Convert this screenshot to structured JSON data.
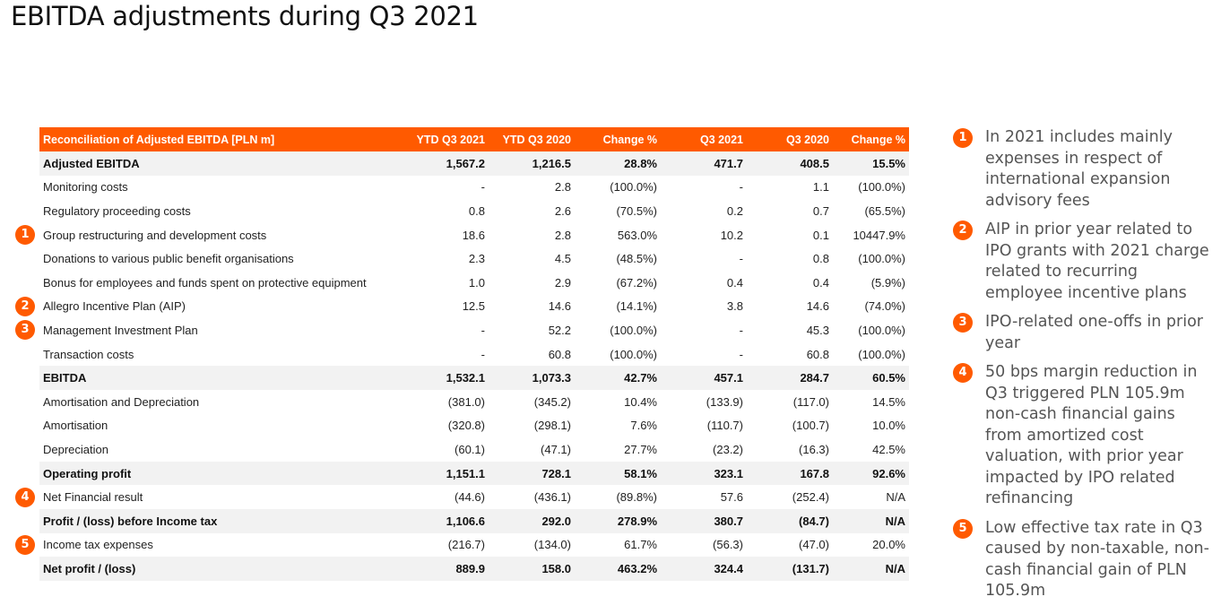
{
  "title": "EBITDA adjustments during Q3 2021",
  "table": {
    "headers": [
      "Reconciliation of Adjusted EBITDA [PLN m]",
      "YTD Q3 2021",
      "YTD Q3 2020",
      "Change %",
      "Q3 2021",
      "Q3 2020",
      "Change %"
    ],
    "rows": [
      {
        "label": "Adjusted EBITDA",
        "cells": [
          "1,567.2",
          "1,216.5",
          "28.8%",
          "471.7",
          "408.5",
          "15.5%"
        ],
        "bold": true
      },
      {
        "label": "Monitoring costs",
        "cells": [
          "-",
          "2.8",
          "(100.0%)",
          "-",
          "1.1",
          "(100.0%)"
        ]
      },
      {
        "label": "Regulatory proceeding costs",
        "cells": [
          "0.8",
          "2.6",
          "(70.5%)",
          "0.2",
          "0.7",
          "(65.5%)"
        ]
      },
      {
        "label": "Group restructuring and development costs",
        "cells": [
          "18.6",
          "2.8",
          "563.0%",
          "10.2",
          "0.1",
          "10447.9%"
        ],
        "badge": "1"
      },
      {
        "label": "Donations to various public benefit organisations",
        "cells": [
          "2.3",
          "4.5",
          "(48.5%)",
          "-",
          "0.8",
          "(100.0%)"
        ]
      },
      {
        "label": "Bonus for employees and funds spent on protective equipment",
        "cells": [
          "1.0",
          "2.9",
          "(67.2%)",
          "0.4",
          "0.4",
          "(5.9%)"
        ]
      },
      {
        "label": "Allegro Incentive Plan (AIP)",
        "cells": [
          "12.5",
          "14.6",
          "(14.1%)",
          "3.8",
          "14.6",
          "(74.0%)"
        ],
        "badge": "2"
      },
      {
        "label": "Management Investment Plan",
        "cells": [
          "-",
          "52.2",
          "(100.0%)",
          "-",
          "45.3",
          "(100.0%)"
        ],
        "badge": "3"
      },
      {
        "label": "Transaction costs",
        "cells": [
          "-",
          "60.8",
          "(100.0%)",
          "-",
          "60.8",
          "(100.0%)"
        ]
      },
      {
        "label": "EBITDA",
        "cells": [
          "1,532.1",
          "1,073.3",
          "42.7%",
          "457.1",
          "284.7",
          "60.5%"
        ],
        "bold": true
      },
      {
        "label": "Amortisation and Depreciation",
        "cells": [
          "(381.0)",
          "(345.2)",
          "10.4%",
          "(133.9)",
          "(117.0)",
          "14.5%"
        ]
      },
      {
        "label": "Amortisation",
        "cells": [
          "(320.8)",
          "(298.1)",
          "7.6%",
          "(110.7)",
          "(100.7)",
          "10.0%"
        ]
      },
      {
        "label": "Depreciation",
        "cells": [
          "(60.1)",
          "(47.1)",
          "27.7%",
          "(23.2)",
          "(16.3)",
          "42.5%"
        ]
      },
      {
        "label": "Operating profit",
        "cells": [
          "1,151.1",
          "728.1",
          "58.1%",
          "323.1",
          "167.8",
          "92.6%"
        ],
        "bold": true
      },
      {
        "label": "Net Financial result",
        "cells": [
          "(44.6)",
          "(436.1)",
          "(89.8%)",
          "57.6",
          "(252.4)",
          "N/A"
        ],
        "badge": "4"
      },
      {
        "label": "Profit / (loss) before Income tax",
        "cells": [
          "1,106.6",
          "292.0",
          "278.9%",
          "380.7",
          "(84.7)",
          "N/A"
        ],
        "bold": true
      },
      {
        "label": "Income tax expenses",
        "cells": [
          "(216.7)",
          "(134.0)",
          "61.7%",
          "(56.3)",
          "(47.0)",
          "20.0%"
        ],
        "badge": "5"
      },
      {
        "label": "Net profit / (loss)",
        "cells": [
          "889.9",
          "158.0",
          "463.2%",
          "324.4",
          "(131.7)",
          "N/A"
        ],
        "bold": true
      }
    ]
  },
  "notes": [
    {
      "num": "1",
      "text": "In 2021 includes mainly expenses in respect of international expansion advisory fees"
    },
    {
      "num": "2",
      "text": "AIP in prior year related to IPO grants with 2021 charge related to recurring employee incentive plans"
    },
    {
      "num": "3",
      "text": "IPO-related one-offs in prior year"
    },
    {
      "num": "4",
      "text": "50 bps margin reduction in Q3 triggered PLN 105.9m non-cash financial gains from amortized cost valuation, with prior year impacted by IPO related refinancing"
    },
    {
      "num": "5",
      "text": "Low effective tax rate in Q3 caused by non-taxable, non-cash financial gain of PLN 105.9m"
    }
  ],
  "colors": {
    "accent": "#ff5a00",
    "row_shade": "#f2f2f2"
  }
}
